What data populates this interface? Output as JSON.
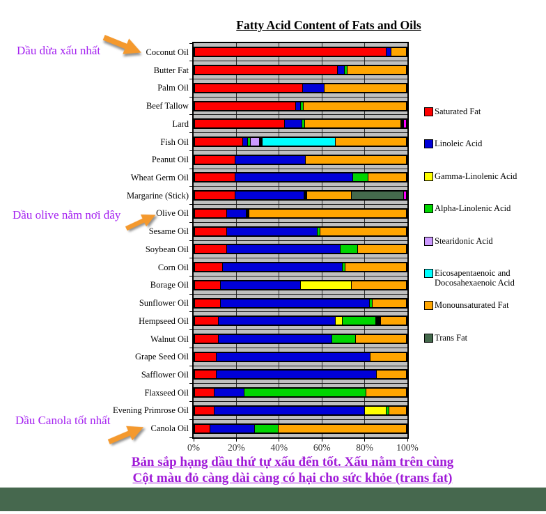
{
  "page": {
    "background": "#FFFFFF",
    "footer_band_color": "#46684E"
  },
  "chart_data": {
    "type": "bar",
    "variant": "horizontal-stacked-percent",
    "title": "Fatty Acid Content of Fats and Oils",
    "plot_background": "#C0C0C0",
    "grid": true,
    "legend_position": "right",
    "x_axis": {
      "tick_labels": [
        "0%",
        "20%",
        "40%",
        "60%",
        "80%",
        "100%"
      ],
      "range": [
        0,
        100
      ]
    },
    "legend": [
      {
        "key": "saturated",
        "label": "Saturated Fat",
        "color": "#FF0000"
      },
      {
        "key": "linoleic",
        "label": "Linoleic Acid",
        "color": "#0000D8"
      },
      {
        "key": "gamma",
        "label": "Gamma-Linolenic Acid",
        "color": "#FFFF00"
      },
      {
        "key": "alpha",
        "label": "Alpha-Linolenic Acid",
        "color": "#00D500"
      },
      {
        "key": "stearidonic",
        "label": "Stearidonic Acid",
        "color": "#CC99FF"
      },
      {
        "key": "epa_dha",
        "label": "Eicosapentaenoic and Docosahexaenoic Acid",
        "label_lines": [
          "Eicosapentaenoic and",
          "Docosahexaenoic Acid"
        ],
        "color": "#00FFFF"
      },
      {
        "key": "mono",
        "label": "Monounsaturated Fat",
        "color": "#FFA500"
      },
      {
        "key": "trans",
        "label": "Trans Fat",
        "color": "#44694C"
      }
    ],
    "non_legend_colors": {
      "divider": "#000000",
      "sliver": "#FF00FF"
    },
    "rows": [
      {
        "label": "Coconut Oil",
        "segments": [
          [
            "saturated",
            91
          ],
          [
            "linoleic",
            2
          ],
          [
            "mono",
            7
          ]
        ]
      },
      {
        "label": "Butter Fat",
        "segments": [
          [
            "saturated",
            68
          ],
          [
            "linoleic",
            3
          ],
          [
            "alpha",
            1
          ],
          [
            "mono",
            28
          ]
        ]
      },
      {
        "label": "Palm Oil",
        "segments": [
          [
            "saturated",
            51
          ],
          [
            "linoleic",
            10
          ],
          [
            "mono",
            39
          ]
        ]
      },
      {
        "label": "Beef Tallow",
        "segments": [
          [
            "saturated",
            48
          ],
          [
            "linoleic",
            2
          ],
          [
            "alpha",
            1
          ],
          [
            "mono",
            49
          ]
        ]
      },
      {
        "label": "Lard",
        "segments": [
          [
            "saturated",
            43
          ],
          [
            "linoleic",
            8
          ],
          [
            "alpha",
            1
          ],
          [
            "mono",
            46
          ],
          [
            "divider",
            1
          ],
          [
            "sliver",
            1
          ]
        ]
      },
      {
        "label": "Fish Oil",
        "segments": [
          [
            "saturated",
            23
          ],
          [
            "linoleic",
            2
          ],
          [
            "alpha",
            1
          ],
          [
            "stearidonic",
            4
          ],
          [
            "divider",
            1
          ],
          [
            "epa_dha",
            35
          ],
          [
            "mono",
            34
          ]
        ]
      },
      {
        "label": "Peanut Oil",
        "segments": [
          [
            "saturated",
            19
          ],
          [
            "linoleic",
            33
          ],
          [
            "mono",
            48
          ]
        ]
      },
      {
        "label": "Wheat Germ Oil",
        "segments": [
          [
            "saturated",
            19
          ],
          [
            "linoleic",
            56
          ],
          [
            "alpha",
            7
          ],
          [
            "mono",
            18
          ]
        ]
      },
      {
        "label": "Margarine (Stick)",
        "segments": [
          [
            "saturated",
            19
          ],
          [
            "linoleic",
            33
          ],
          [
            "divider",
            1
          ],
          [
            "mono",
            21
          ],
          [
            "trans",
            25
          ],
          [
            "sliver",
            1
          ]
        ]
      },
      {
        "label": "Olive Oil",
        "segments": [
          [
            "saturated",
            15
          ],
          [
            "linoleic",
            9
          ],
          [
            "divider",
            1
          ],
          [
            "mono",
            75
          ]
        ]
      },
      {
        "label": "Sesame Oil",
        "segments": [
          [
            "saturated",
            15
          ],
          [
            "linoleic",
            43
          ],
          [
            "alpha",
            1
          ],
          [
            "mono",
            41
          ]
        ]
      },
      {
        "label": "Soybean Oil",
        "segments": [
          [
            "saturated",
            15
          ],
          [
            "linoleic",
            54
          ],
          [
            "alpha",
            8
          ],
          [
            "mono",
            23
          ]
        ]
      },
      {
        "label": "Corn Oil",
        "segments": [
          [
            "saturated",
            13
          ],
          [
            "linoleic",
            57
          ],
          [
            "alpha",
            1
          ],
          [
            "mono",
            29
          ]
        ]
      },
      {
        "label": "Borage Oil",
        "segments": [
          [
            "saturated",
            12
          ],
          [
            "linoleic",
            38
          ],
          [
            "gamma",
            24
          ],
          [
            "mono",
            26
          ]
        ]
      },
      {
        "label": "Sunflower Oil",
        "segments": [
          [
            "saturated",
            12
          ],
          [
            "linoleic",
            71
          ],
          [
            "alpha",
            1
          ],
          [
            "mono",
            16
          ]
        ]
      },
      {
        "label": "Hempseed Oil",
        "segments": [
          [
            "saturated",
            11
          ],
          [
            "linoleic",
            56
          ],
          [
            "gamma",
            3
          ],
          [
            "alpha",
            16
          ],
          [
            "divider",
            2
          ],
          [
            "mono",
            12
          ]
        ]
      },
      {
        "label": "Walnut Oil",
        "segments": [
          [
            "saturated",
            11
          ],
          [
            "linoleic",
            54
          ],
          [
            "alpha",
            11
          ],
          [
            "mono",
            24
          ]
        ]
      },
      {
        "label": "Grape Seed Oil",
        "segments": [
          [
            "saturated",
            10
          ],
          [
            "linoleic",
            73
          ],
          [
            "mono",
            17
          ]
        ]
      },
      {
        "label": "Safflower Oil",
        "segments": [
          [
            "saturated",
            10
          ],
          [
            "linoleic",
            76
          ],
          [
            "mono",
            14
          ]
        ]
      },
      {
        "label": "Flaxseed Oil",
        "segments": [
          [
            "saturated",
            9
          ],
          [
            "linoleic",
            14
          ],
          [
            "alpha",
            58
          ],
          [
            "mono",
            19
          ]
        ]
      },
      {
        "label": "Evening Primrose Oil",
        "segments": [
          [
            "saturated",
            9
          ],
          [
            "linoleic",
            72
          ],
          [
            "gamma",
            10
          ],
          [
            "alpha",
            1
          ],
          [
            "mono",
            8
          ]
        ]
      },
      {
        "label": "Canola Oil",
        "segments": [
          [
            "saturated",
            7
          ],
          [
            "linoleic",
            21
          ],
          [
            "alpha",
            11
          ],
          [
            "mono",
            61
          ]
        ]
      }
    ]
  },
  "annotations": {
    "coconut_note": "Dầu dừa xấu nhất",
    "olive_note": "Dầu olive nằm nơi đây",
    "canola_note": "Dầu Canola tốt nhất",
    "note_color": "#A421F0",
    "arrow_color": "#F4992E"
  },
  "caption": {
    "line1": "Bản sắp hạng dầu thứ tự xấu đến tốt. Xấu nằm trên cùng",
    "line2": "Cột màu đỏ càng dài càng có hại cho sức khỏe (trans fat)",
    "color": "#A01BD8"
  }
}
